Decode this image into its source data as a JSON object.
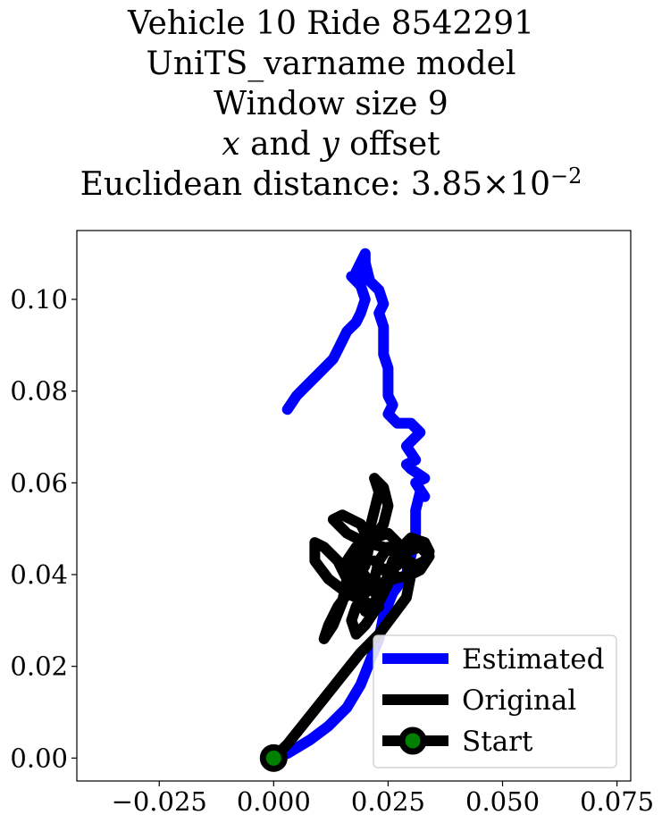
{
  "title": {
    "line1": "Vehicle 10 Ride 8542291",
    "line2": "UniTS_varname model",
    "line3": "Window size 9",
    "line4_x": "x",
    "line4_and": "and",
    "line4_y": "y",
    "line4_rest": "offset",
    "line5_prefix": "Euclidean distance: 3.85",
    "line5_times": "×",
    "line5_base": "10",
    "line5_exp": "−2"
  },
  "chart_data": {
    "type": "line",
    "xlim": [
      -0.043,
      0.078
    ],
    "ylim": [
      -0.005,
      0.115
    ],
    "x_ticks": [
      {
        "value": -0.025,
        "label": "−0.025"
      },
      {
        "value": 0.0,
        "label": "0.000"
      },
      {
        "value": 0.025,
        "label": "0.025"
      },
      {
        "value": 0.05,
        "label": "0.050"
      },
      {
        "value": 0.075,
        "label": "0.075"
      }
    ],
    "y_ticks": [
      {
        "value": 0.0,
        "label": "0.00"
      },
      {
        "value": 0.02,
        "label": "0.02"
      },
      {
        "value": 0.04,
        "label": "0.04"
      },
      {
        "value": 0.06,
        "label": "0.06"
      },
      {
        "value": 0.08,
        "label": "0.08"
      },
      {
        "value": 0.1,
        "label": "0.10"
      }
    ],
    "grid": false,
    "legend_position": "bottom-right",
    "series": [
      {
        "name": "Estimated",
        "color": "#0000ff",
        "points": [
          [
            0.0,
            0.0
          ],
          [
            0.003,
            0.001
          ],
          [
            0.008,
            0.004
          ],
          [
            0.012,
            0.007
          ],
          [
            0.016,
            0.011
          ],
          [
            0.019,
            0.016
          ],
          [
            0.021,
            0.021
          ],
          [
            0.023,
            0.026
          ],
          [
            0.024,
            0.031
          ],
          [
            0.026,
            0.036
          ],
          [
            0.029,
            0.04
          ],
          [
            0.03,
            0.044
          ],
          [
            0.031,
            0.049
          ],
          [
            0.031,
            0.054
          ],
          [
            0.032,
            0.058
          ],
          [
            0.033,
            0.057
          ],
          [
            0.031,
            0.06
          ],
          [
            0.033,
            0.061
          ],
          [
            0.03,
            0.063
          ],
          [
            0.029,
            0.064
          ],
          [
            0.031,
            0.065
          ],
          [
            0.029,
            0.068
          ],
          [
            0.032,
            0.071
          ],
          [
            0.03,
            0.073
          ],
          [
            0.027,
            0.073
          ],
          [
            0.025,
            0.075
          ],
          [
            0.026,
            0.077
          ],
          [
            0.025,
            0.079
          ],
          [
            0.025,
            0.082
          ],
          [
            0.025,
            0.085
          ],
          [
            0.024,
            0.088
          ],
          [
            0.024,
            0.091
          ],
          [
            0.024,
            0.094
          ],
          [
            0.023,
            0.097
          ],
          [
            0.024,
            0.099
          ],
          [
            0.023,
            0.102
          ],
          [
            0.021,
            0.104
          ],
          [
            0.02,
            0.108
          ],
          [
            0.02,
            0.11
          ],
          [
            0.018,
            0.106
          ],
          [
            0.019,
            0.104
          ],
          [
            0.017,
            0.105
          ],
          [
            0.019,
            0.103
          ],
          [
            0.02,
            0.1
          ],
          [
            0.019,
            0.097
          ],
          [
            0.018,
            0.095
          ],
          [
            0.016,
            0.093
          ],
          [
            0.015,
            0.091
          ],
          [
            0.014,
            0.089
          ],
          [
            0.013,
            0.087
          ],
          [
            0.01,
            0.084
          ],
          [
            0.007,
            0.081
          ],
          [
            0.005,
            0.079
          ],
          [
            0.003,
            0.076
          ]
        ]
      },
      {
        "name": "Original",
        "color": "#000000",
        "points": [
          [
            0.0,
            0.0
          ],
          [
            0.003,
            0.003
          ],
          [
            0.007,
            0.008
          ],
          [
            0.011,
            0.013
          ],
          [
            0.015,
            0.018
          ],
          [
            0.019,
            0.023
          ],
          [
            0.023,
            0.027
          ],
          [
            0.026,
            0.031
          ],
          [
            0.029,
            0.035
          ],
          [
            0.03,
            0.04
          ],
          [
            0.028,
            0.044
          ],
          [
            0.024,
            0.046
          ],
          [
            0.02,
            0.047
          ],
          [
            0.016,
            0.049
          ],
          [
            0.013,
            0.052
          ],
          [
            0.015,
            0.053
          ],
          [
            0.019,
            0.051
          ],
          [
            0.021,
            0.047
          ],
          [
            0.02,
            0.042
          ],
          [
            0.017,
            0.037
          ],
          [
            0.014,
            0.033
          ],
          [
            0.012,
            0.029
          ],
          [
            0.011,
            0.026
          ],
          [
            0.013,
            0.029
          ],
          [
            0.015,
            0.034
          ],
          [
            0.016,
            0.039
          ],
          [
            0.014,
            0.043
          ],
          [
            0.011,
            0.046
          ],
          [
            0.009,
            0.047
          ],
          [
            0.009,
            0.043
          ],
          [
            0.012,
            0.039
          ],
          [
            0.016,
            0.036
          ],
          [
            0.02,
            0.034
          ],
          [
            0.023,
            0.033
          ],
          [
            0.022,
            0.037
          ],
          [
            0.019,
            0.041
          ],
          [
            0.016,
            0.043
          ],
          [
            0.018,
            0.046
          ],
          [
            0.022,
            0.048
          ],
          [
            0.025,
            0.049
          ],
          [
            0.027,
            0.047
          ],
          [
            0.028,
            0.044
          ],
          [
            0.031,
            0.042
          ],
          [
            0.033,
            0.043
          ],
          [
            0.034,
            0.045
          ],
          [
            0.033,
            0.047
          ],
          [
            0.03,
            0.048
          ],
          [
            0.028,
            0.046
          ],
          [
            0.026,
            0.043
          ],
          [
            0.025,
            0.04
          ],
          [
            0.024,
            0.037
          ],
          [
            0.022,
            0.034
          ],
          [
            0.02,
            0.032
          ],
          [
            0.018,
            0.036
          ],
          [
            0.019,
            0.04
          ],
          [
            0.02,
            0.045
          ],
          [
            0.021,
            0.05
          ],
          [
            0.022,
            0.054
          ],
          [
            0.023,
            0.058
          ],
          [
            0.022,
            0.061
          ],
          [
            0.024,
            0.059
          ],
          [
            0.025,
            0.055
          ],
          [
            0.024,
            0.051
          ],
          [
            0.022,
            0.048
          ],
          [
            0.019,
            0.045
          ],
          [
            0.017,
            0.042
          ],
          [
            0.018,
            0.039
          ],
          [
            0.02,
            0.037
          ],
          [
            0.022,
            0.039
          ],
          [
            0.023,
            0.043
          ],
          [
            0.025,
            0.046
          ],
          [
            0.027,
            0.044
          ],
          [
            0.026,
            0.04
          ],
          [
            0.024,
            0.036
          ],
          [
            0.022,
            0.032
          ],
          [
            0.02,
            0.029
          ],
          [
            0.018,
            0.027
          ],
          [
            0.017,
            0.03
          ],
          [
            0.018,
            0.033
          ],
          [
            0.02,
            0.036
          ],
          [
            0.023,
            0.038
          ],
          [
            0.026,
            0.039
          ],
          [
            0.03,
            0.04
          ],
          [
            0.032,
            0.041
          ],
          [
            0.034,
            0.044
          ],
          [
            0.032,
            0.046
          ],
          [
            0.029,
            0.045
          ],
          [
            0.027,
            0.042
          ],
          [
            0.024,
            0.041
          ],
          [
            0.022,
            0.043
          ]
        ]
      }
    ],
    "start_point": {
      "name": "Start",
      "x": 0.0,
      "y": 0.0,
      "color": "#008000",
      "edge_color": "#000000"
    }
  }
}
